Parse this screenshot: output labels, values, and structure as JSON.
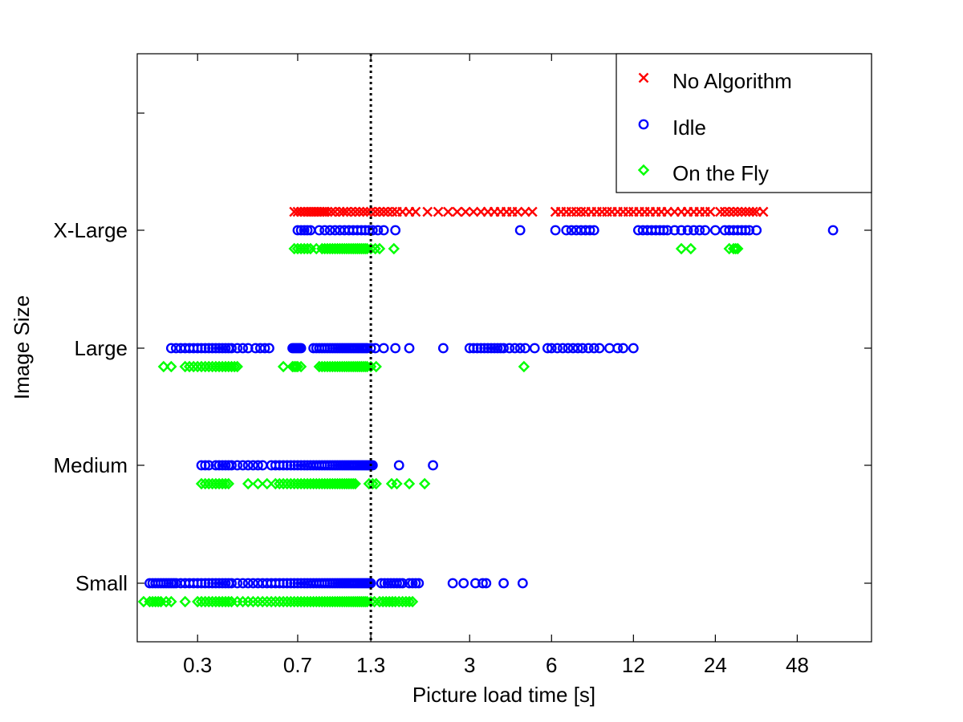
{
  "chart_data": {
    "type": "scatter",
    "title": "",
    "xlabel": "Picture load time [s]",
    "ylabel": "Image Size",
    "x_scale": "log",
    "xlim": [
      0.18,
      90
    ],
    "x_ticks": [
      "0.3",
      "0.7",
      "1.3",
      "3",
      "6",
      "12",
      "24",
      "48"
    ],
    "categories": [
      "Small",
      "Medium",
      "Large",
      "X-Large"
    ],
    "reference_line": {
      "x": 1.3,
      "style": "dotted",
      "color": "#000000"
    },
    "legend": {
      "placement": "top-right"
    },
    "grid": false,
    "series": [
      {
        "name": "No Algorithm",
        "marker": "x",
        "color": "#ff0000",
        "points": [
          {
            "category": "X-Large",
            "x": [
              0.68,
              0.7,
              0.72,
              0.74,
              0.76,
              0.78,
              0.8,
              0.82,
              0.84,
              0.86,
              0.88,
              0.9,
              0.93,
              0.96,
              1.0,
              1.03,
              1.06,
              1.1,
              1.14,
              1.18,
              1.22,
              1.26,
              1.3,
              1.35,
              1.4,
              1.45,
              1.5,
              1.56,
              1.62,
              1.7,
              1.8,
              1.9,
              2.1,
              2.3,
              2.5,
              2.7,
              2.9,
              3.1,
              3.3,
              3.5,
              3.7,
              3.9,
              4.1,
              4.3,
              4.5,
              4.8,
              5.1,
              6.2,
              6.5,
              6.8,
              7.1,
              7.4,
              7.7,
              8.0,
              8.4,
              8.8,
              9.2,
              9.6,
              10.0,
              10.5,
              11.0,
              11.5,
              12.0,
              12.6,
              13.2,
              13.8,
              14.5,
              15.2,
              16.0,
              17.0,
              18.0,
              19.0,
              20.0,
              21.0,
              22.0,
              23.0,
              25.0,
              26.0,
              27.0,
              28.0,
              29.0,
              30.0,
              31.0,
              32.0,
              33.0,
              34.0,
              36.0
            ]
          }
        ]
      },
      {
        "name": "Idle",
        "marker": "o",
        "color": "#0000ff",
        "points": [
          {
            "category": "X-Large",
            "x": [
              0.7,
              0.72,
              0.74,
              0.76,
              0.78,
              0.84,
              0.88,
              0.92,
              0.96,
              1.0,
              1.04,
              1.08,
              1.12,
              1.16,
              1.2,
              1.24,
              1.28,
              1.32,
              1.38,
              1.45,
              1.6,
              4.6,
              6.2,
              6.8,
              7.1,
              7.4,
              7.7,
              8.0,
              8.3,
              8.6,
              12.5,
              13.0,
              13.5,
              14.0,
              14.5,
              15.0,
              15.5,
              16.0,
              17.0,
              18.0,
              19.0,
              20.0,
              21.0,
              22.0,
              24.0,
              26.0,
              27.0,
              28.0,
              29.0,
              30.0,
              31.0,
              32.0,
              34.0,
              65.0
            ]
          },
          {
            "category": "Large",
            "x": [
              0.24,
              0.25,
              0.26,
              0.27,
              0.28,
              0.29,
              0.3,
              0.31,
              0.32,
              0.33,
              0.34,
              0.35,
              0.36,
              0.37,
              0.38,
              0.39,
              0.4,
              0.42,
              0.44,
              0.46,
              0.49,
              0.51,
              0.53,
              0.55,
              0.67,
              0.68,
              0.69,
              0.7,
              0.71,
              0.72,
              0.8,
              0.82,
              0.84,
              0.86,
              0.88,
              0.9,
              0.92,
              0.94,
              0.96,
              0.98,
              1.0,
              1.02,
              1.04,
              1.06,
              1.08,
              1.1,
              1.12,
              1.14,
              1.16,
              1.18,
              1.2,
              1.22,
              1.24,
              1.26,
              1.3,
              1.35,
              1.45,
              1.6,
              1.8,
              2.4,
              3.0,
              3.1,
              3.2,
              3.3,
              3.4,
              3.5,
              3.6,
              3.7,
              3.8,
              3.9,
              4.0,
              4.2,
              4.4,
              4.6,
              4.8,
              5.2,
              5.8,
              6.0,
              6.3,
              6.6,
              6.9,
              7.2,
              7.5,
              7.8,
              8.2,
              8.6,
              9.0,
              9.8,
              10.5,
              11.0,
              12.0
            ]
          },
          {
            "category": "Medium",
            "x": [
              0.31,
              0.32,
              0.33,
              0.35,
              0.36,
              0.37,
              0.38,
              0.39,
              0.4,
              0.42,
              0.44,
              0.46,
              0.48,
              0.5,
              0.52,
              0.56,
              0.58,
              0.6,
              0.62,
              0.64,
              0.66,
              0.68,
              0.7,
              0.72,
              0.74,
              0.76,
              0.78,
              0.8,
              0.82,
              0.84,
              0.86,
              0.88,
              0.9,
              0.92,
              0.94,
              0.96,
              0.98,
              1.0,
              1.02,
              1.04,
              1.06,
              1.08,
              1.1,
              1.12,
              1.14,
              1.16,
              1.18,
              1.2,
              1.22,
              1.24,
              1.26,
              1.28,
              1.3,
              1.32,
              1.65,
              2.2
            ]
          },
          {
            "category": "Small",
            "x": [
              0.2,
              0.205,
              0.21,
              0.215,
              0.22,
              0.225,
              0.23,
              0.235,
              0.24,
              0.245,
              0.25,
              0.26,
              0.27,
              0.28,
              0.29,
              0.3,
              0.31,
              0.32,
              0.33,
              0.34,
              0.35,
              0.36,
              0.37,
              0.38,
              0.39,
              0.4,
              0.42,
              0.44,
              0.46,
              0.48,
              0.5,
              0.52,
              0.54,
              0.56,
              0.58,
              0.6,
              0.62,
              0.64,
              0.66,
              0.68,
              0.7,
              0.72,
              0.74,
              0.76,
              0.78,
              0.8,
              0.82,
              0.84,
              0.86,
              0.88,
              0.9,
              0.92,
              0.94,
              0.96,
              0.98,
              1.0,
              1.02,
              1.04,
              1.06,
              1.08,
              1.1,
              1.12,
              1.14,
              1.16,
              1.18,
              1.2,
              1.22,
              1.24,
              1.26,
              1.28,
              1.3,
              1.42,
              1.46,
              1.5,
              1.54,
              1.58,
              1.62,
              1.66,
              1.7,
              1.8,
              1.85,
              1.9,
              1.95,
              2.6,
              2.85,
              3.15,
              3.35,
              3.45,
              4.0,
              4.7
            ]
          }
        ]
      },
      {
        "name": "On the Fly",
        "marker": "diamond",
        "color": "#00ff00",
        "points": [
          {
            "category": "X-Large",
            "x": [
              0.68,
              0.7,
              0.72,
              0.74,
              0.76,
              0.78,
              0.82,
              0.86,
              0.88,
              0.9,
              0.92,
              0.94,
              0.96,
              0.98,
              1.0,
              1.02,
              1.04,
              1.06,
              1.08,
              1.1,
              1.12,
              1.14,
              1.16,
              1.18,
              1.2,
              1.22,
              1.24,
              1.26,
              1.3,
              1.35,
              1.4,
              1.58,
              18.0,
              19.5,
              27.0,
              28.0,
              28.5,
              29.0
            ]
          },
          {
            "category": "Large",
            "x": [
              0.225,
              0.24,
              0.27,
              0.28,
              0.29,
              0.3,
              0.31,
              0.32,
              0.33,
              0.34,
              0.35,
              0.36,
              0.37,
              0.38,
              0.39,
              0.4,
              0.41,
              0.42,
              0.62,
              0.67,
              0.68,
              0.69,
              0.7,
              0.72,
              0.84,
              0.86,
              0.88,
              0.9,
              0.92,
              0.94,
              0.96,
              0.98,
              1.0,
              1.02,
              1.04,
              1.06,
              1.08,
              1.1,
              1.12,
              1.14,
              1.16,
              1.18,
              1.2,
              1.22,
              1.24,
              1.26,
              1.3,
              1.36,
              4.75
            ]
          },
          {
            "category": "Medium",
            "x": [
              0.31,
              0.32,
              0.33,
              0.34,
              0.35,
              0.36,
              0.37,
              0.38,
              0.39,
              0.46,
              0.5,
              0.54,
              0.58,
              0.6,
              0.62,
              0.64,
              0.66,
              0.68,
              0.7,
              0.72,
              0.74,
              0.76,
              0.78,
              0.8,
              0.82,
              0.84,
              0.86,
              0.88,
              0.9,
              0.92,
              0.94,
              0.96,
              0.98,
              1.0,
              1.02,
              1.04,
              1.06,
              1.08,
              1.1,
              1.12,
              1.14,
              1.28,
              1.32,
              1.36,
              1.55,
              1.62,
              1.8,
              2.05
            ]
          },
          {
            "category": "Small",
            "x": [
              0.165,
              0.19,
              0.2,
              0.205,
              0.21,
              0.215,
              0.22,
              0.23,
              0.24,
              0.27,
              0.3,
              0.31,
              0.32,
              0.33,
              0.34,
              0.35,
              0.36,
              0.37,
              0.38,
              0.39,
              0.4,
              0.42,
              0.44,
              0.46,
              0.48,
              0.5,
              0.52,
              0.54,
              0.56,
              0.58,
              0.6,
              0.62,
              0.64,
              0.66,
              0.68,
              0.7,
              0.72,
              0.74,
              0.76,
              0.78,
              0.8,
              0.82,
              0.84,
              0.86,
              0.88,
              0.9,
              0.92,
              0.94,
              0.96,
              0.98,
              1.0,
              1.02,
              1.04,
              1.06,
              1.08,
              1.1,
              1.12,
              1.14,
              1.16,
              1.18,
              1.2,
              1.22,
              1.24,
              1.26,
              1.3,
              1.34,
              1.4,
              1.44,
              1.48,
              1.52,
              1.56,
              1.6,
              1.65,
              1.7,
              1.75,
              1.8,
              1.85
            ]
          }
        ]
      }
    ]
  }
}
